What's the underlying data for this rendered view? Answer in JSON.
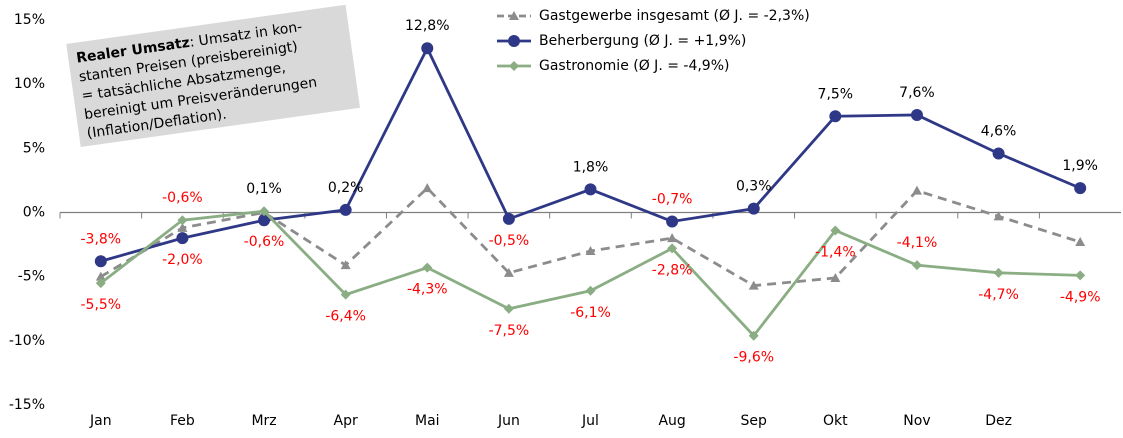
{
  "chart_data": {
    "type": "line",
    "categories": [
      "Jan",
      "Feb",
      "Mrz",
      "Apr",
      "Mai",
      "Jun",
      "Jul",
      "Aug",
      "Sep",
      "Okt",
      "Nov",
      "Dez",
      null
    ],
    "ylim": [
      -15,
      15
    ],
    "yticks": [
      {
        "value": -15,
        "label": "-15%"
      },
      {
        "value": -10,
        "label": "-10%"
      },
      {
        "value": -5,
        "label": "-5%"
      },
      {
        "value": 0,
        "label": "0%"
      },
      {
        "value": 5,
        "label": "5%"
      },
      {
        "value": 10,
        "label": "10%"
      },
      {
        "value": 15,
        "label": "15%"
      }
    ],
    "grid": false,
    "legend": "top",
    "negative_label_color": "#ff0000",
    "positive_label_color": "#000000",
    "series": [
      {
        "name": "Gastgewerbe insgesamt (Ø J. = -2,3%)",
        "color": "#8c8c8c",
        "dashed": true,
        "marker": "triangle",
        "values": [
          -5.0,
          -1.2,
          0.0,
          -4.1,
          1.9,
          -4.7,
          -3.0,
          -2.0,
          -5.7,
          -5.1,
          1.7,
          -0.3,
          -2.3
        ]
      },
      {
        "name": "Beherbergung (Ø J. = +1,9%)",
        "color": "#2e3886",
        "dashed": false,
        "marker": "circle",
        "values": [
          -3.8,
          -2.0,
          -0.6,
          0.2,
          12.8,
          -0.5,
          1.8,
          -0.7,
          0.3,
          7.5,
          7.6,
          4.6,
          1.9
        ],
        "value_labels": [
          "-3,8%",
          "-2,0%",
          "-0,6%",
          "0,2%",
          "12,8%",
          "-0,5%",
          "1,8%",
          "-0,7%",
          "0,3%",
          "7,5%",
          "7,6%",
          "4,6%",
          "1,9%"
        ]
      },
      {
        "name": "Gastronomie (Ø J. = -4,9%)",
        "color": "#8aad84",
        "dashed": false,
        "marker": "diamond",
        "values": [
          -5.5,
          -0.6,
          0.1,
          -6.4,
          -4.3,
          -7.5,
          -6.1,
          -2.8,
          -9.6,
          -1.4,
          -4.1,
          -4.7,
          -4.9
        ],
        "value_labels": [
          "-5,5%",
          "-0,6%",
          "0,1%",
          "-6,4%",
          "-4,3%",
          "-7,5%",
          "-6,1%",
          "-2,8%",
          "-9,6%",
          "-1,4%",
          "-4,1%",
          "-4,7%",
          "-4,9%"
        ]
      }
    ],
    "annotation": {
      "bold": "Realer Umsatz",
      "lines": [
        ": Umsatz in kon-",
        "stanten Preisen (preisbereinigt)",
        "= tatsächliche Absatzmenge,",
        "bereinigt um Preisveränderungen",
        "(Inflation/Deflation)."
      ]
    }
  }
}
